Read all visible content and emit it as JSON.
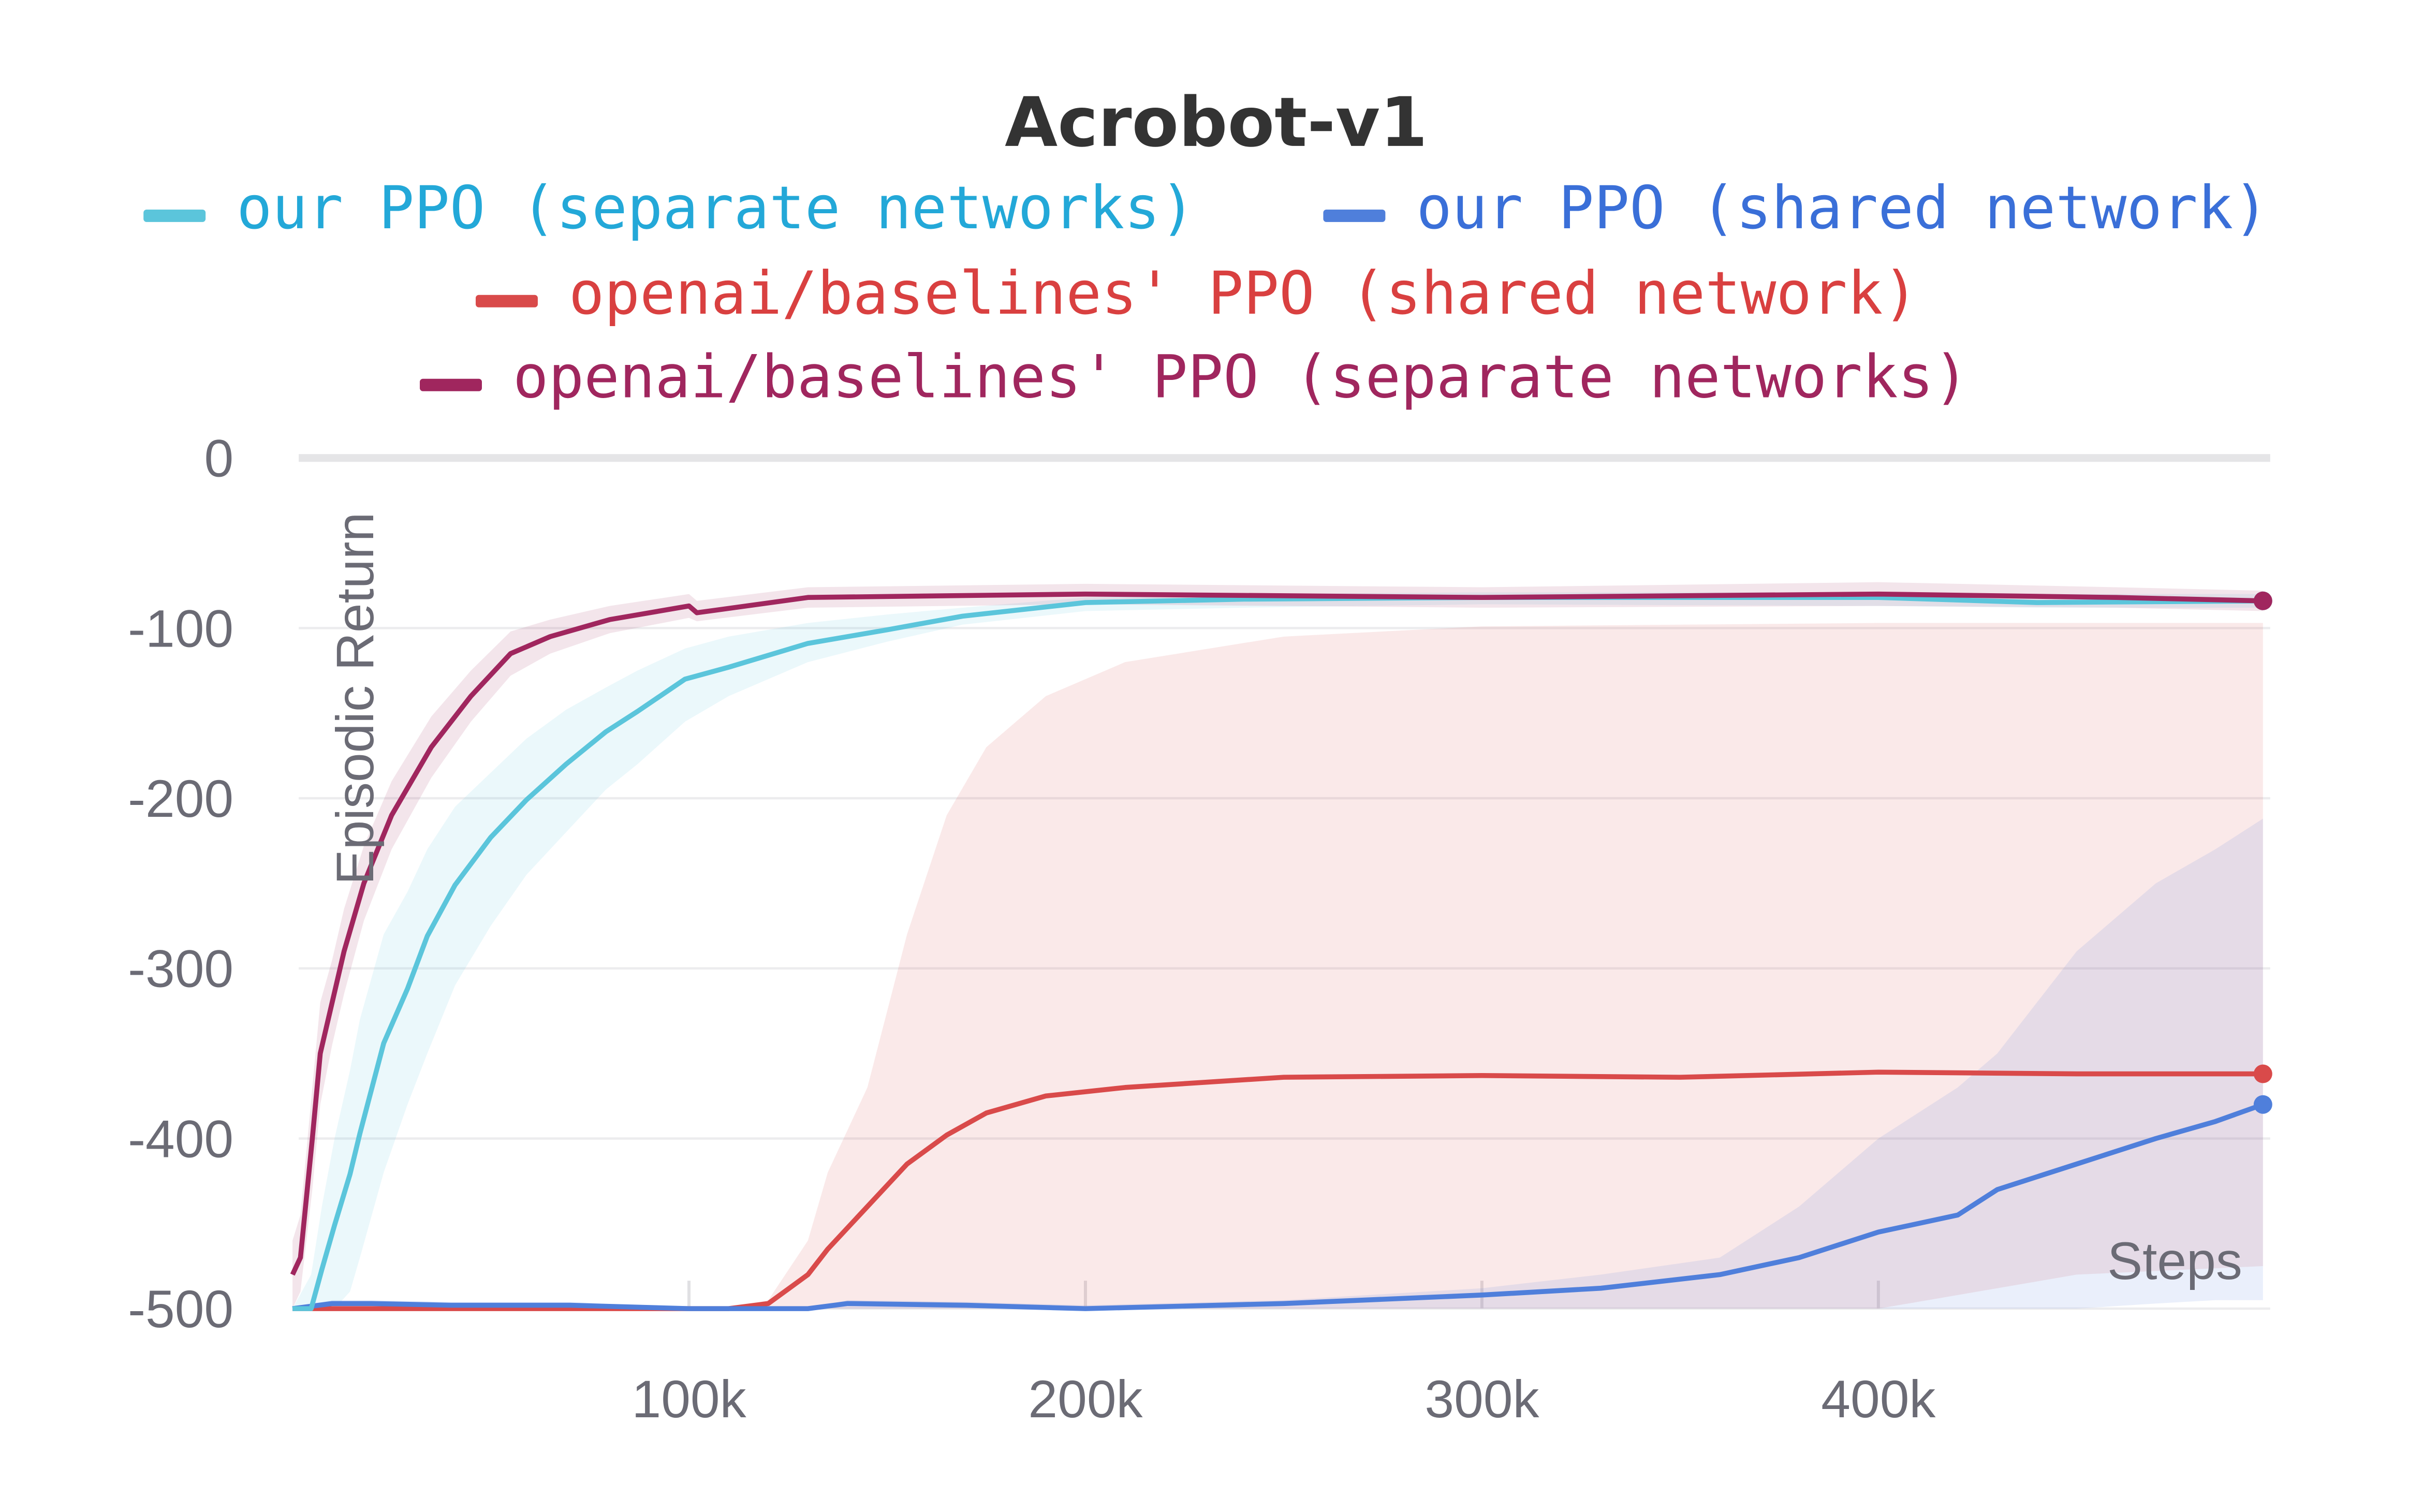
{
  "chart_data": {
    "type": "line",
    "title": "Acrobot-v1",
    "xlabel": "Steps",
    "ylabel": "Episodic Return",
    "xlim": [
      0,
      497000
    ],
    "ylim": [
      -500,
      0
    ],
    "x_ticks": [
      100000,
      200000,
      300000,
      400000
    ],
    "x_tick_labels": [
      "100k",
      "200k",
      "300k",
      "400k"
    ],
    "y_ticks": [
      0,
      -100,
      -200,
      -300,
      -400,
      -500
    ],
    "y_tick_labels": [
      "0",
      "-100",
      "-200",
      "-300",
      "-400",
      "-500"
    ],
    "grid": true,
    "legend_placement": "top",
    "series": [
      {
        "name": "our PPO (separate networks)",
        "color": "#5bc5db",
        "text_color": "#23a8d8",
        "x": [
          0,
          4700,
          7400,
          10600,
          14500,
          17000,
          23000,
          29000,
          34000,
          41000,
          50000,
          59000,
          69000,
          79000,
          87000,
          99000,
          110000,
          130000,
          150000,
          169000,
          200000,
          240000,
          300000,
          400000,
          440000,
          497000
        ],
        "y": [
          -500,
          -500,
          -477,
          -451,
          -421,
          -397,
          -344,
          -312,
          -281,
          -251,
          -223,
          -201,
          -180,
          -161,
          -149,
          -130,
          -123,
          -109,
          -101,
          -93,
          -85,
          -83,
          -82,
          -82,
          -85,
          -84
        ],
        "band_low": [
          -500,
          -500,
          -500,
          -500,
          -490,
          -470,
          -420,
          -380,
          -350,
          -310,
          -275,
          -245,
          -220,
          -195,
          -180,
          -155,
          -140,
          -120,
          -108,
          -98,
          -90,
          -88,
          -86,
          -87,
          -88,
          -88
        ],
        "band_high": [
          -500,
          -480,
          -440,
          -400,
          -360,
          -330,
          -280,
          -255,
          -230,
          -205,
          -185,
          -165,
          -148,
          -135,
          -125,
          -112,
          -105,
          -97,
          -92,
          -88,
          -82,
          -80,
          -79,
          -79,
          -80,
          -80
        ]
      },
      {
        "name": "our PPO (shared network)",
        "color": "#4f7fdb",
        "text_color": "#3a6fd8",
        "x": [
          0,
          10000,
          20000,
          40000,
          70000,
          100000,
          130000,
          140000,
          170000,
          200000,
          250000,
          300000,
          330000,
          360000,
          380000,
          400000,
          420000,
          430000,
          450000,
          470000,
          485000,
          497000
        ],
        "y": [
          -500,
          -497,
          -497,
          -498,
          -498,
          -500,
          -500,
          -497,
          -498,
          -500,
          -497,
          -492,
          -488,
          -480,
          -470,
          -455,
          -445,
          -430,
          -415,
          -400,
          -390,
          -380
        ],
        "band_low": [
          -500,
          -500,
          -500,
          -500,
          -500,
          -500,
          -500,
          -500,
          -500,
          -500,
          -500,
          -500,
          -500,
          -500,
          -500,
          -500,
          -500,
          -500,
          -500,
          -497,
          -495,
          -495
        ],
        "band_high": [
          -500,
          -495,
          -495,
          -496,
          -496,
          -500,
          -500,
          -495,
          -496,
          -498,
          -495,
          -488,
          -480,
          -470,
          -440,
          -400,
          -370,
          -350,
          -290,
          -250,
          -230,
          -212
        ]
      },
      {
        "name": "openai/baselines' PPO (shared network)",
        "color": "#d94a4a",
        "text_color": "#d94040",
        "x": [
          0,
          50000,
          110000,
          120000,
          130000,
          135000,
          145000,
          155000,
          165000,
          175000,
          190000,
          210000,
          250000,
          300000,
          350000,
          400000,
          450000,
          497000
        ],
        "y": [
          -500,
          -500,
          -500,
          -497,
          -480,
          -465,
          -440,
          -415,
          -398,
          -385,
          -375,
          -370,
          -364,
          -363,
          -364,
          -361,
          -362,
          -362
        ],
        "band_low": [
          -500,
          -500,
          -500,
          -500,
          -500,
          -500,
          -500,
          -500,
          -500,
          -500,
          -500,
          -500,
          -500,
          -500,
          -500,
          -500,
          -480,
          -475
        ],
        "band_high": [
          -500,
          -500,
          -500,
          -495,
          -460,
          -420,
          -370,
          -280,
          -210,
          -170,
          -140,
          -120,
          -105,
          -99,
          -98,
          -97,
          -97,
          -97
        ]
      },
      {
        "name": "openai/baselines' PPO (separate networks)",
        "color": "#a0265e",
        "text_color": "#a0265e",
        "x": [
          0,
          2000,
          5000,
          7000,
          10000,
          13000,
          18000,
          25000,
          35000,
          45000,
          55000,
          65000,
          80000,
          100000,
          102000,
          130000,
          200000,
          300000,
          400000,
          460000,
          497000
        ],
        "y": [
          -480,
          -470,
          -400,
          -350,
          -320,
          -290,
          -250,
          -210,
          -170,
          -140,
          -115,
          -105,
          -95,
          -87,
          -91,
          -82,
          -80,
          -82,
          -80,
          -82,
          -84
        ],
        "band_low": [
          -500,
          -490,
          -430,
          -380,
          -345,
          -315,
          -272,
          -230,
          -188,
          -155,
          -128,
          -115,
          -103,
          -94,
          -96,
          -88,
          -86,
          -88,
          -87,
          -88,
          -90
        ],
        "band_high": [
          -460,
          -445,
          -370,
          -320,
          -295,
          -265,
          -228,
          -190,
          -152,
          -125,
          -102,
          -95,
          -87,
          -80,
          -84,
          -76,
          -74,
          -76,
          -73,
          -76,
          -78
        ]
      }
    ]
  }
}
